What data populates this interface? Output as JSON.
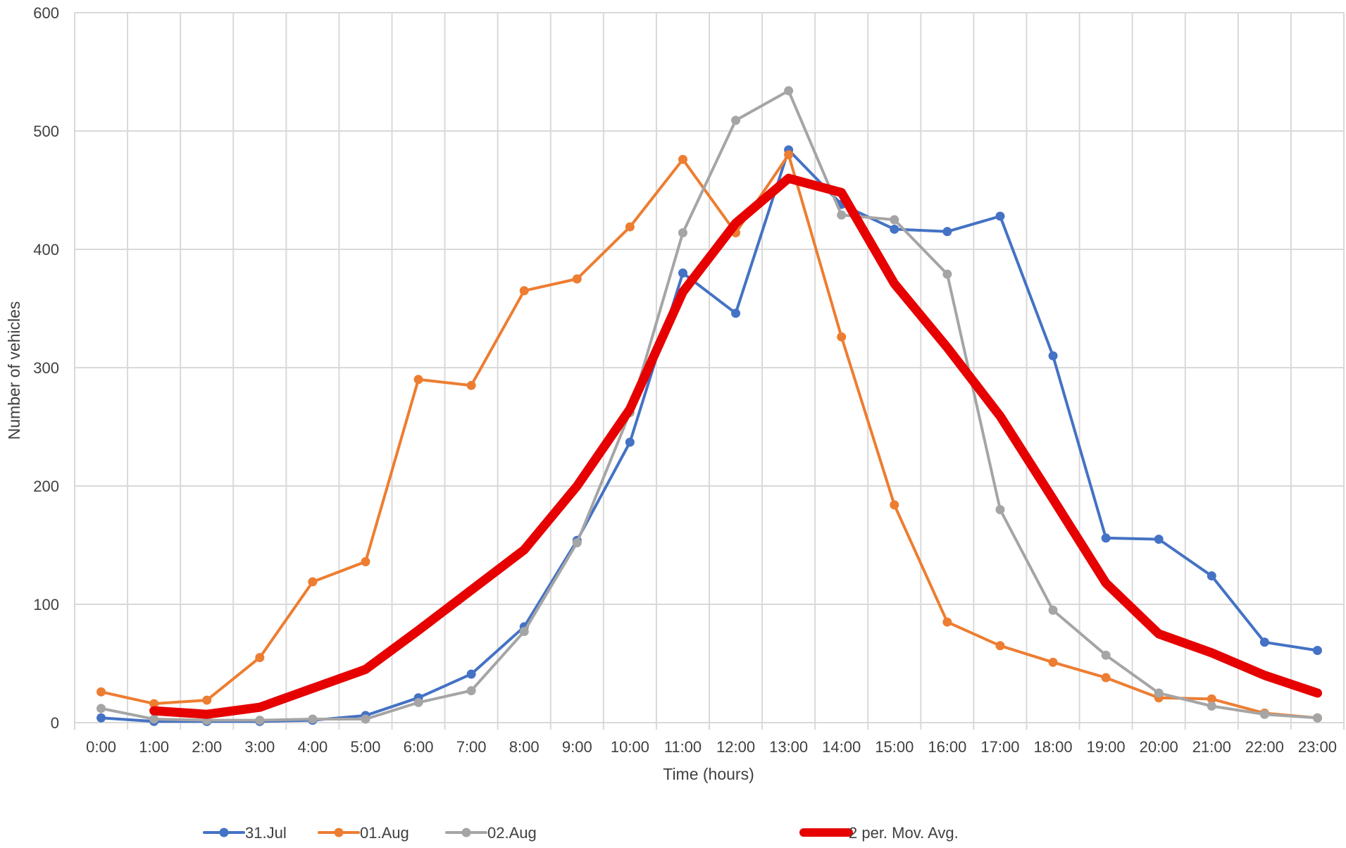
{
  "chart_data": {
    "type": "line",
    "title": "",
    "xlabel": "Time (hours)",
    "ylabel": "Number of vehicles",
    "ylim": [
      0,
      600
    ],
    "yticks": [
      0,
      100,
      200,
      300,
      400,
      500,
      600
    ],
    "grid": true,
    "legend_position": "bottom",
    "categories": [
      "0:00",
      "1:00",
      "2:00",
      "3:00",
      "4:00",
      "5:00",
      "6:00",
      "7:00",
      "8:00",
      "9:00",
      "10:00",
      "11:00",
      "12:00",
      "13:00",
      "14:00",
      "15:00",
      "16:00",
      "17:00",
      "18:00",
      "19:00",
      "20:00",
      "21:00",
      "22:00",
      "23:00"
    ],
    "series": [
      {
        "name": "31.Jul",
        "color": "#4472C4",
        "marker": true,
        "values": [
          4,
          1,
          1,
          1,
          2,
          6,
          21,
          41,
          81,
          154,
          237,
          380,
          346,
          484,
          438,
          417,
          415,
          428,
          310,
          156,
          155,
          124,
          68,
          61
        ]
      },
      {
        "name": "01.Aug",
        "color": "#ED7D31",
        "marker": true,
        "values": [
          26,
          16,
          19,
          55,
          119,
          136,
          290,
          285,
          365,
          375,
          419,
          476,
          414,
          480,
          326,
          184,
          85,
          65,
          51,
          38,
          21,
          20,
          8,
          4
        ]
      },
      {
        "name": "02.Aug",
        "color": "#A5A5A5",
        "marker": true,
        "values": [
          12,
          3,
          2,
          2,
          3,
          3,
          17,
          27,
          77,
          152,
          262,
          414,
          509,
          534,
          429,
          425,
          379,
          180,
          95,
          57,
          25,
          14,
          7,
          4
        ]
      },
      {
        "name": "2 per. Mov. Avg.",
        "color": "#E60000",
        "marker": false,
        "values": [
          null,
          10,
          7,
          13,
          29,
          45,
          78,
          112,
          146,
          200,
          265,
          364,
          422,
          460,
          448,
          371,
          317,
          259,
          189,
          118,
          75,
          59,
          40,
          25
        ]
      }
    ]
  }
}
